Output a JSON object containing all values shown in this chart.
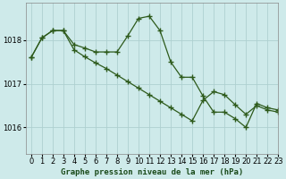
{
  "title": "Graphe pression niveau de la mer (hPa)",
  "background_color": "#ceeaea",
  "grid_color": "#aed0d0",
  "line_color": "#2d5a1b",
  "xlim": [
    -0.5,
    23
  ],
  "ylim": [
    1015.4,
    1018.85
  ],
  "yticks": [
    1016,
    1017,
    1018
  ],
  "xticks": [
    0,
    1,
    2,
    3,
    4,
    5,
    6,
    7,
    8,
    9,
    10,
    11,
    12,
    13,
    14,
    15,
    16,
    17,
    18,
    19,
    20,
    21,
    22,
    23
  ],
  "series1_x": [
    0,
    1,
    2,
    3,
    4,
    5,
    6,
    7,
    8,
    9,
    10,
    11,
    12,
    13,
    14,
    15,
    16,
    17,
    18,
    19,
    20,
    21,
    22,
    23
  ],
  "series1_y": [
    1017.6,
    1018.05,
    1018.22,
    1018.22,
    1017.9,
    1017.82,
    1017.73,
    1017.73,
    1017.73,
    1018.1,
    1018.5,
    1018.55,
    1018.22,
    1017.5,
    1017.15,
    1017.15,
    1016.72,
    1016.35,
    1016.35,
    1016.2,
    1016.0,
    1016.55,
    1016.45,
    1016.4
  ],
  "series2_x": [
    0,
    1,
    2,
    3,
    4,
    5,
    6,
    7,
    8,
    9,
    10,
    11,
    12,
    13,
    14,
    15,
    16,
    17,
    18,
    19,
    20,
    21,
    22,
    23
  ],
  "series2_y": [
    1017.6,
    1018.05,
    1018.22,
    1018.22,
    1017.78,
    1017.62,
    1017.48,
    1017.35,
    1017.2,
    1017.05,
    1016.9,
    1016.75,
    1016.6,
    1016.45,
    1016.3,
    1016.15,
    1016.62,
    1016.82,
    1016.75,
    1016.52,
    1016.3,
    1016.5,
    1016.4,
    1016.35
  ],
  "xlabel_fontsize": 6.5,
  "tick_fontsize": 6.0
}
